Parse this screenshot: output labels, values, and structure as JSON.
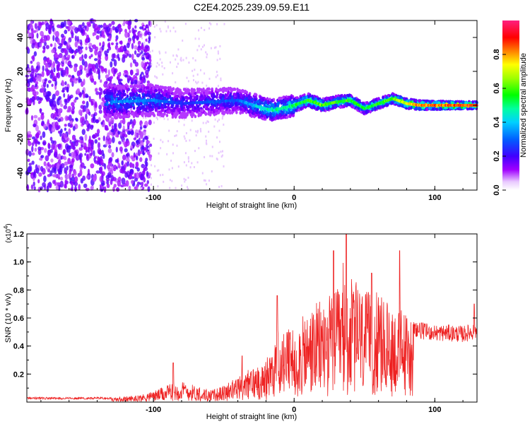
{
  "title": "C2E4.2025.239.09.59.E11",
  "chart_data": [
    {
      "type": "heatmap",
      "title": "C2E4.2025.239.09.59.E11",
      "xlabel": "Height of straight line (km)",
      "ylabel": "Frequency (Hz)",
      "xlim": [
        -190,
        130
      ],
      "ylim": [
        -50,
        50
      ],
      "x_ticks": [
        -100,
        0,
        100
      ],
      "y_ticks": [
        -40,
        -20,
        0,
        20,
        40
      ],
      "colorbar": {
        "label": "Normalized spectral amplitude",
        "range": [
          0,
          1
        ],
        "ticks": [
          "0.0",
          "0.2",
          "0.4",
          "0.6",
          "0.8"
        ],
        "tick_values": [
          0,
          0.2,
          0.4,
          0.6,
          0.8
        ]
      },
      "ridge": {
        "description_points_x": [
          -130,
          -100,
          -80,
          -60,
          -40,
          -25,
          -15,
          0,
          10,
          20,
          30,
          40,
          50,
          60,
          70,
          80,
          90,
          130
        ],
        "frequency_hz": [
          2,
          3,
          1,
          2,
          3,
          -1,
          -3,
          0,
          3,
          0,
          2,
          3,
          -2,
          1,
          4,
          1,
          0,
          0
        ],
        "amplitude": [
          0.35,
          0.35,
          0.25,
          0.3,
          0.3,
          0.45,
          0.5,
          0.55,
          0.6,
          0.65,
          0.6,
          0.6,
          0.55,
          0.6,
          0.65,
          0.75,
          0.85,
          0.9
        ]
      },
      "noise_region_x": [
        -190,
        -110
      ]
    },
    {
      "type": "line",
      "color": "#ee2222",
      "xlabel": "Height of straight line (km)",
      "ylabel": "SNR (10 * v/v)",
      "y_multiplier_label": "(x10",
      "y_multiplier_exp": "4",
      "y_multiplier_close": ")",
      "xlim": [
        -190,
        130
      ],
      "ylim": [
        0,
        1.2
      ],
      "x_ticks": [
        -100,
        0,
        100
      ],
      "y_ticks": [
        "0.2",
        "0.4",
        "0.6",
        "0.8",
        "1.0",
        "1.2"
      ],
      "y_tick_values": [
        0.2,
        0.4,
        0.6,
        0.8,
        1.0,
        1.2
      ],
      "envelope_x": [
        -190,
        -130,
        -110,
        -100,
        -90,
        -80,
        -70,
        -60,
        -50,
        -40,
        -30,
        -20,
        -10,
        0,
        10,
        20,
        30,
        40,
        50,
        60,
        70,
        80,
        90,
        100,
        110,
        120,
        130
      ],
      "envelope_y": [
        0.03,
        0.03,
        0.05,
        0.08,
        0.12,
        0.15,
        0.12,
        0.08,
        0.12,
        0.18,
        0.25,
        0.3,
        0.5,
        0.55,
        0.65,
        0.75,
        0.8,
        0.9,
        0.8,
        0.75,
        0.7,
        0.65,
        0.6,
        0.58,
        0.58,
        0.57,
        0.6
      ],
      "peaks": [
        {
          "x": -86,
          "y": 0.28
        },
        {
          "x": -37,
          "y": 0.33
        },
        {
          "x": -12,
          "y": 0.76
        },
        {
          "x": 28,
          "y": 1.08
        },
        {
          "x": 37,
          "y": 1.2
        },
        {
          "x": 55,
          "y": 0.92
        },
        {
          "x": 75,
          "y": 1.08
        },
        {
          "x": 128,
          "y": 0.7
        }
      ]
    }
  ]
}
